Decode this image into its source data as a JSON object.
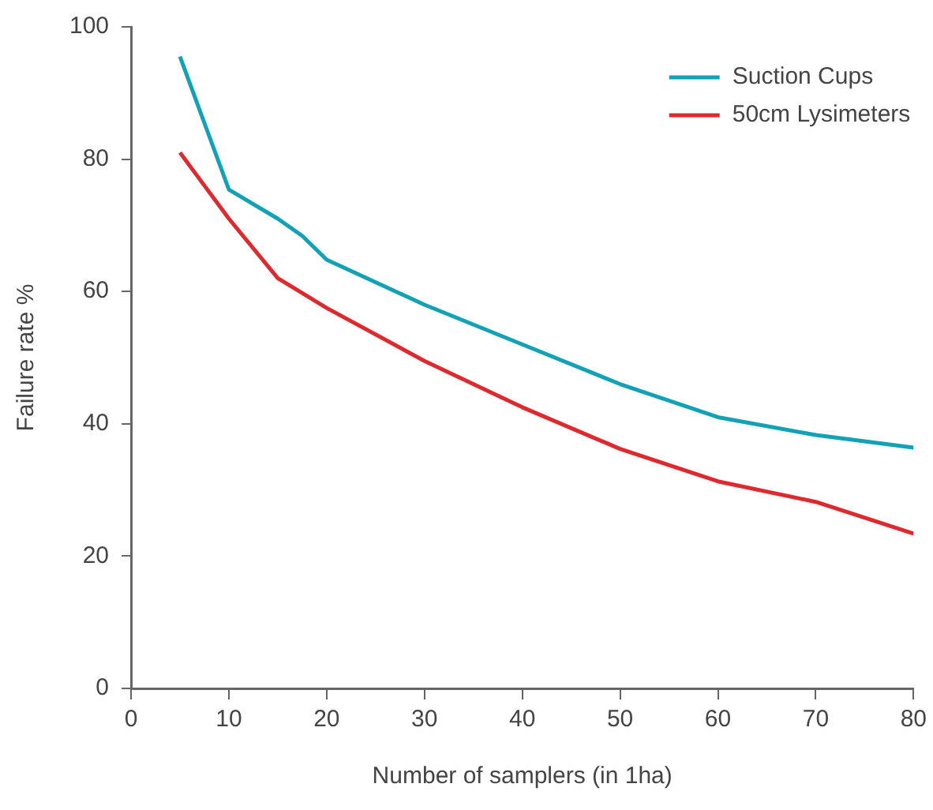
{
  "chart_data": {
    "type": "line",
    "xlabel": "Number of samplers (in 1ha)",
    "ylabel": "Failure rate %",
    "xlim": [
      0,
      80
    ],
    "xticks": [
      0,
      10,
      20,
      30,
      40,
      50,
      60,
      70,
      80
    ],
    "ylim": [
      0,
      100
    ],
    "yticks": [
      0,
      20,
      40,
      60,
      80,
      100
    ],
    "grid": false,
    "legend": "top right",
    "marker": "none",
    "line_style": "solid",
    "series": [
      {
        "name": "Suction Cups",
        "color": "#13a2b5",
        "x": [
          5,
          10,
          15,
          17.5,
          20,
          30,
          40,
          50,
          60,
          70,
          80
        ],
        "values": [
          95.5,
          75.4,
          71,
          68.4,
          64.8,
          58,
          52,
          46,
          41,
          38.3,
          36.4
        ]
      },
      {
        "name": "50cm Lysimeters",
        "color": "#dc2a2f",
        "x": [
          5,
          10,
          15,
          20,
          30,
          40,
          50,
          60,
          70,
          80
        ],
        "values": [
          81,
          71,
          62,
          57.5,
          49.5,
          42.5,
          36.2,
          31.3,
          28.2,
          23.4
        ]
      }
    ]
  }
}
